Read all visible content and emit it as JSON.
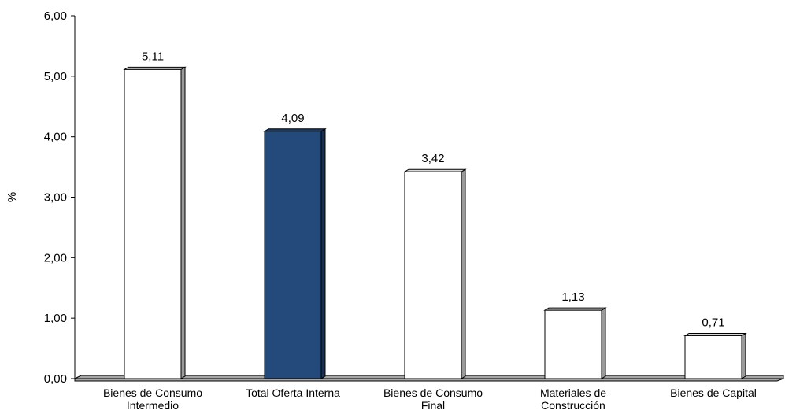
{
  "chart_data": {
    "type": "bar",
    "categories": [
      [
        "Bienes de Consumo",
        "Intermedio"
      ],
      [
        "Total Oferta Interna"
      ],
      [
        "Bienes de Consumo",
        "Final"
      ],
      [
        "Materiales de",
        "Construcción"
      ],
      [
        "Bienes de Capital"
      ]
    ],
    "values": [
      5.11,
      4.09,
      3.42,
      1.13,
      0.71
    ],
    "data_labels": [
      "5,11",
      "4,09",
      "3,42",
      "1,13",
      "0,71"
    ],
    "highlight_index": 1,
    "ylabel": "%",
    "xlabel": "",
    "title": "",
    "ylim": [
      0,
      6
    ],
    "yticks": [
      0,
      1,
      2,
      3,
      4,
      5,
      6
    ],
    "ytick_labels": [
      "0,00",
      "1,00",
      "2,00",
      "3,00",
      "4,00",
      "5,00",
      "6,00"
    ],
    "grid": false,
    "legend": "none",
    "colors": {
      "bar": "#ffffff",
      "bar_highlight": "#244a7c",
      "bar_edge": "#000000",
      "side": "#9a9a9a",
      "floor": "#a6a6a6"
    }
  }
}
